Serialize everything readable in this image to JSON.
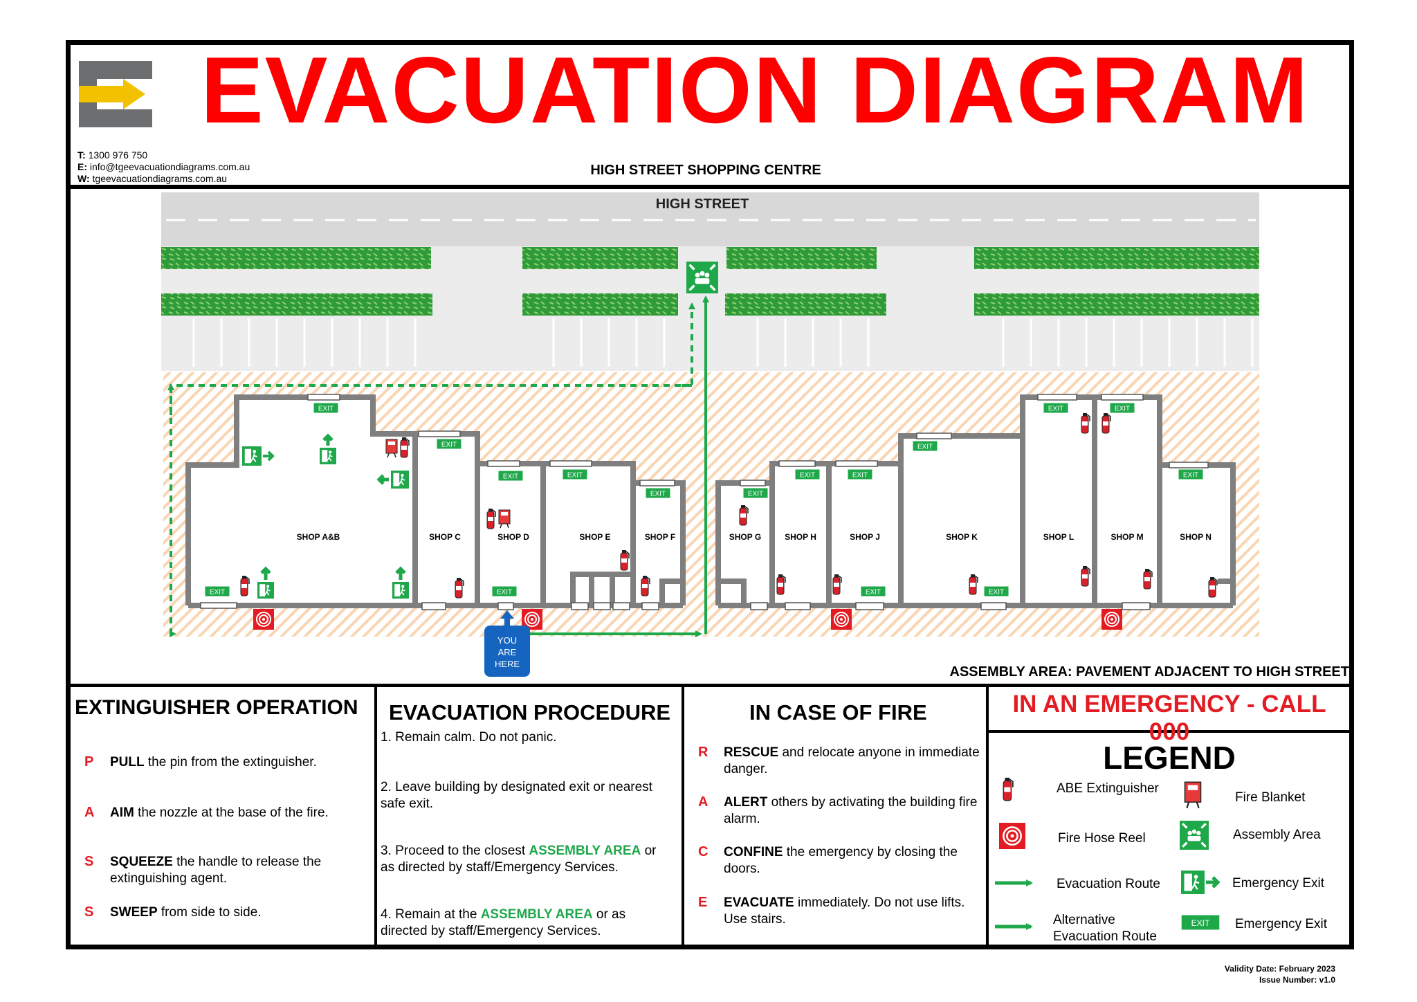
{
  "header": {
    "title": "EVACUATION DIAGRAM",
    "contact": {
      "t_label": "T:",
      "t_value": "1300 976 750",
      "e_label": "E:",
      "e_value": "info@tgeevacuationdiagrams.com.au",
      "w_label": "W:",
      "w_value": "tgeevacuationdiagrams.com.au"
    },
    "building": "HIGH STREET SHOPPING CENTRE"
  },
  "map": {
    "street": "HIGH STREET",
    "shops": [
      "SHOP A&B",
      "SHOP C",
      "SHOP D",
      "SHOP E",
      "SHOP F",
      "SHOP G",
      "SHOP H",
      "SHOP J",
      "SHOP K",
      "SHOP L",
      "SHOP M",
      "SHOP N"
    ],
    "exit_label": "EXIT",
    "you_are_here": [
      "YOU",
      "ARE",
      "HERE"
    ],
    "assembly_area_text": "ASSEMBLY AREA: PAVEMENT ADJACENT TO HIGH STREET"
  },
  "extinguisher": {
    "title": "EXTINGUISHER OPERATION",
    "steps": [
      {
        "letter": "P",
        "bold": "PULL",
        "text": " the pin from the extinguisher."
      },
      {
        "letter": "A",
        "bold": "AIM",
        "text": "  the nozzle at the base of the fire."
      },
      {
        "letter": "S",
        "bold": "SQUEEZE",
        "text": " the handle to release the extinguishing agent."
      },
      {
        "letter": "S",
        "bold": "SWEEP",
        "text": " from side to side."
      }
    ]
  },
  "procedure": {
    "title": "EVACUATION PROCEDURE",
    "step1": "1. Remain calm. Do not panic.",
    "step2": "2. Leave building by designated exit or nearest safe exit.",
    "step3_pre": "3. Proceed to the closest ",
    "step3_hl": "ASSEMBLY AREA",
    "step3_post": " or as directed by staff/Emergency Services.",
    "step4_pre": "4. Remain at the ",
    "step4_hl": "ASSEMBLY AREA",
    "step4_post": " or as directed by staff/Emergency Services."
  },
  "fire": {
    "title": "IN CASE OF FIRE",
    "steps": [
      {
        "letter": "R",
        "bold": "RESCUE",
        "text": " and relocate anyone in immediate danger."
      },
      {
        "letter": "A",
        "bold": "ALERT",
        "text": " others by activating the building fire alarm."
      },
      {
        "letter": "C",
        "bold": "CONFINE",
        "text": " the emergency by closing the doors."
      },
      {
        "letter": "E",
        "bold": "EVACUATE",
        "text": " immediately. Do not use lifts. Use stairs."
      }
    ]
  },
  "emergency": "IN AN EMERGENCY - CALL 000",
  "legend": {
    "title": "LEGEND",
    "abe": "ABE Extinguisher",
    "blanket": "Fire Blanket",
    "hose": "Fire Hose Reel",
    "assembly": "Assembly Area",
    "route": "Evacuation Route",
    "emergency_exit": "Emergency Exit",
    "alt_route": "Alternative Evacuation Route",
    "exit_sign_label": "Emergency Exit"
  },
  "footer": {
    "validity": "Validity Date: February 2023",
    "issue": "Issue Number: v1.0"
  },
  "colors": {
    "title_red": "#ff0000",
    "route_green": "#1ea84a",
    "wall_grey": "#808080",
    "you_are_here_blue": "#1565c0",
    "hedge_green": "#2e9e3a",
    "assembly_hatch": "#f8cfa8"
  }
}
